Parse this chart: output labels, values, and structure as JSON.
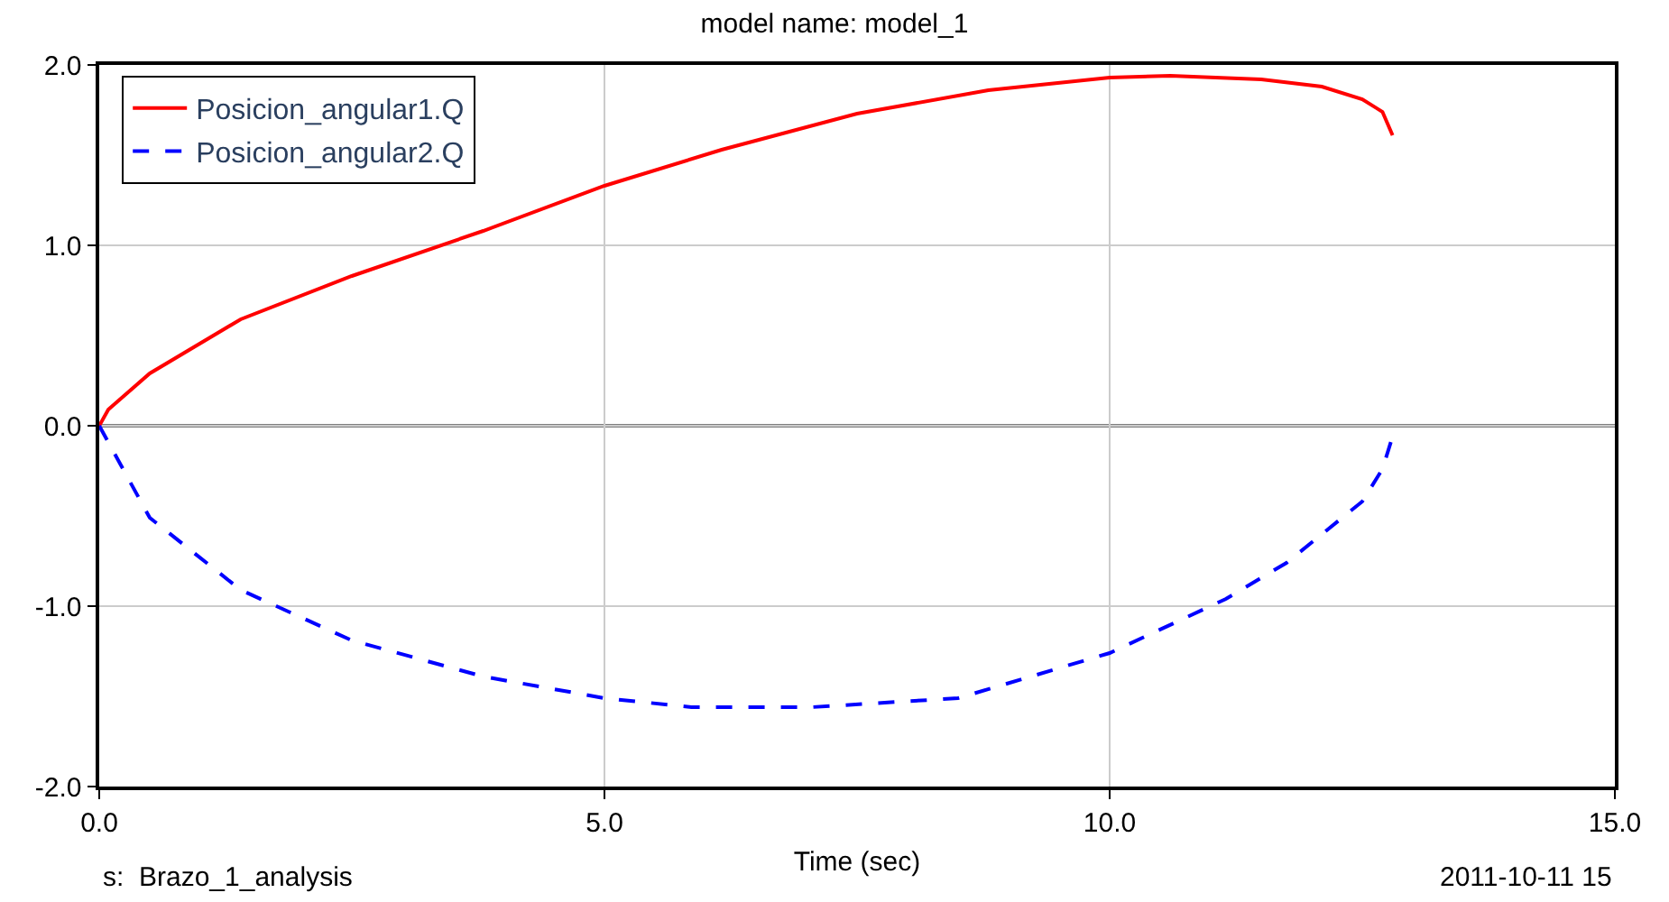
{
  "chart_data": {
    "type": "line",
    "title": "model name: model_1",
    "xlabel": "Time (sec)",
    "x": [
      0,
      0.09,
      0.5,
      1.4,
      2.5,
      3.8,
      5,
      6.16,
      7.5,
      8.8,
      10,
      10.6,
      11.5,
      12.1,
      12.5,
      12.7,
      12.8
    ],
    "series": [
      {
        "name": "Posicion_angular1.Q",
        "color": "#ff0000",
        "line_style": "solid",
        "values": [
          0,
          0.09,
          0.29,
          0.59,
          0.83,
          1.08,
          1.33,
          1.53,
          1.73,
          1.86,
          1.93,
          1.94,
          1.92,
          1.88,
          1.81,
          1.74,
          1.61
        ]
      },
      {
        "name": "Posicion_angular2.Q",
        "color": "#0000ff",
        "line_style": "dashed",
        "x": [
          0,
          0.5,
          1.4,
          2.5,
          3.8,
          5,
          5.86,
          7.05,
          8.5,
          10,
          11.15,
          11.75,
          12.5,
          12.7,
          12.8
        ],
        "values": [
          0,
          -0.51,
          -0.91,
          -1.19,
          -1.39,
          -1.51,
          -1.56,
          -1.56,
          -1.51,
          -1.26,
          -0.96,
          -0.76,
          -0.42,
          -0.24,
          -0.06
        ]
      }
    ],
    "xlim": [
      0,
      15
    ],
    "xticks": [
      {
        "value": 0,
        "label": "0.0"
      },
      {
        "value": 5,
        "label": "5.0"
      },
      {
        "value": 10,
        "label": "10.0"
      },
      {
        "value": 15,
        "label": "15.0"
      }
    ],
    "ylim": [
      -2,
      2
    ],
    "yticks": [
      {
        "value": -2,
        "label": "-2.0"
      },
      {
        "value": -1,
        "label": "-1.0"
      },
      {
        "value": 0,
        "label": "0.0"
      },
      {
        "value": 1,
        "label": "1.0"
      },
      {
        "value": 2,
        "label": "2.0"
      }
    ],
    "ref_lines": [
      {
        "axis": "y",
        "value": 0,
        "color": "#000000"
      }
    ],
    "annotations": [
      "s:  Brazo_1_analysis",
      "2011-10-11 15"
    ],
    "grid": true,
    "legend": "top left",
    "marker": "none"
  }
}
